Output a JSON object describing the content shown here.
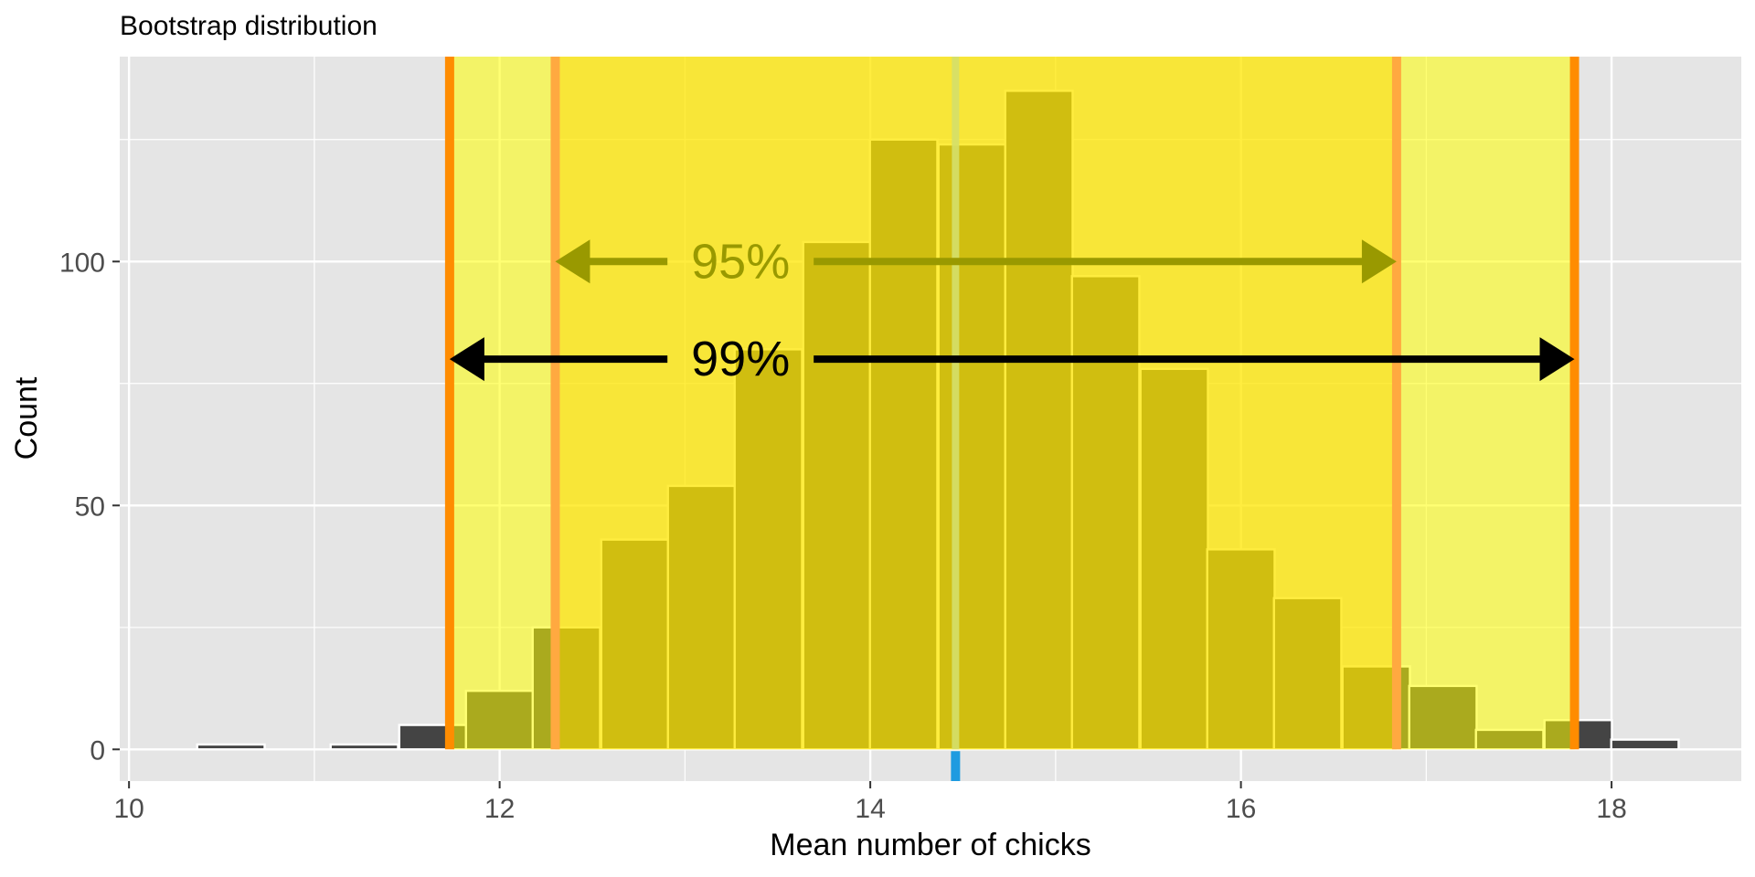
{
  "chart_data": {
    "type": "bar",
    "title": "Bootstrap distribution",
    "xlabel": "Mean number of chicks",
    "ylabel": "Count",
    "xlim": [
      9.95,
      18.7
    ],
    "ylim": [
      -6.5,
      142
    ],
    "x_ticks": [
      10,
      12,
      14,
      16,
      18
    ],
    "x_tick_labels": [
      "10",
      "12",
      "14",
      "16",
      "18"
    ],
    "y_ticks": [
      0,
      50,
      100
    ],
    "y_tick_labels": [
      "0",
      "50",
      "100"
    ],
    "bin_width": 0.3636,
    "bins": [
      {
        "x": 10.55,
        "count": 1
      },
      {
        "x": 10.91,
        "count": 0
      },
      {
        "x": 11.27,
        "count": 1
      },
      {
        "x": 11.64,
        "count": 5
      },
      {
        "x": 12.0,
        "count": 12
      },
      {
        "x": 12.36,
        "count": 25
      },
      {
        "x": 12.73,
        "count": 43
      },
      {
        "x": 13.09,
        "count": 54
      },
      {
        "x": 13.45,
        "count": 82
      },
      {
        "x": 13.82,
        "count": 104
      },
      {
        "x": 14.18,
        "count": 125
      },
      {
        "x": 14.55,
        "count": 124
      },
      {
        "x": 14.91,
        "count": 135
      },
      {
        "x": 15.27,
        "count": 97
      },
      {
        "x": 15.64,
        "count": 78
      },
      {
        "x": 16.0,
        "count": 41
      },
      {
        "x": 16.36,
        "count": 31
      },
      {
        "x": 16.73,
        "count": 17
      },
      {
        "x": 17.09,
        "count": 13
      },
      {
        "x": 17.45,
        "count": 4
      },
      {
        "x": 17.82,
        "count": 6
      },
      {
        "x": 18.18,
        "count": 2
      }
    ],
    "interval_99": {
      "lower": 11.73,
      "upper": 17.8,
      "label": "99%",
      "arrow_y": 80
    },
    "interval_95": {
      "lower": 12.3,
      "upper": 16.84,
      "label": "95%",
      "arrow_y": 100
    },
    "point_estimate": 14.46,
    "colors": {
      "panel": "#e5e5e5",
      "grid": "#ffffff",
      "bar": "#444444",
      "bar_outline": "#ffffff",
      "shade_99": "#ffff00",
      "shade_95": "#ffd700",
      "line_99": "#ff8c00",
      "line_95": "#ffa940",
      "arrow_99": "#000000",
      "arrow_95": "#999900",
      "estimate_line": "#d4df6a",
      "estimate_tick": "#1e9be0",
      "text": "#000000",
      "tick_text": "#4d4d4d"
    }
  }
}
